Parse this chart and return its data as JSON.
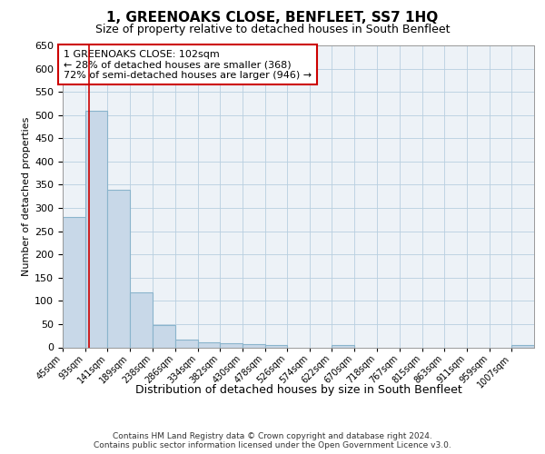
{
  "title": "1, GREENOAKS CLOSE, BENFLEET, SS7 1HQ",
  "subtitle": "Size of property relative to detached houses in South Benfleet",
  "xlabel": "Distribution of detached houses by size in South Benfleet",
  "ylabel": "Number of detached properties",
  "bins": [
    "45sqm",
    "93sqm",
    "141sqm",
    "189sqm",
    "238sqm",
    "286sqm",
    "334sqm",
    "382sqm",
    "430sqm",
    "478sqm",
    "526sqm",
    "574sqm",
    "622sqm",
    "670sqm",
    "718sqm",
    "767sqm",
    "815sqm",
    "863sqm",
    "911sqm",
    "959sqm",
    "1007sqm"
  ],
  "bin_left_edges": [
    45,
    93,
    141,
    189,
    238,
    286,
    334,
    382,
    430,
    478,
    526,
    574,
    622,
    670,
    718,
    767,
    815,
    863,
    911,
    959,
    1007
  ],
  "bin_width": 48,
  "heights": [
    280,
    510,
    340,
    118,
    47,
    16,
    10,
    9,
    6,
    4,
    0,
    0,
    5,
    0,
    0,
    0,
    0,
    0,
    0,
    0,
    4
  ],
  "bar_color": "#c8d8e8",
  "bar_edge_color": "#8ab4cc",
  "property_size": 102,
  "property_line_color": "#cc0000",
  "annotation_line1": "1 GREENOAKS CLOSE: 102sqm",
  "annotation_line2": "← 28% of detached houses are smaller (368)",
  "annotation_line3": "72% of semi-detached houses are larger (946) →",
  "annotation_box_color": "#cc0000",
  "ylim": [
    0,
    650
  ],
  "yticks": [
    0,
    50,
    100,
    150,
    200,
    250,
    300,
    350,
    400,
    450,
    500,
    550,
    600,
    650
  ],
  "footer": "Contains HM Land Registry data © Crown copyright and database right 2024.\nContains public sector information licensed under the Open Government Licence v3.0.",
  "bg_color": "#edf2f7",
  "grid_color": "#b8cfe0",
  "title_fontsize": 11,
  "subtitle_fontsize": 9,
  "ylabel_fontsize": 8,
  "xlabel_fontsize": 9,
  "tick_fontsize": 8,
  "xtick_fontsize": 7
}
